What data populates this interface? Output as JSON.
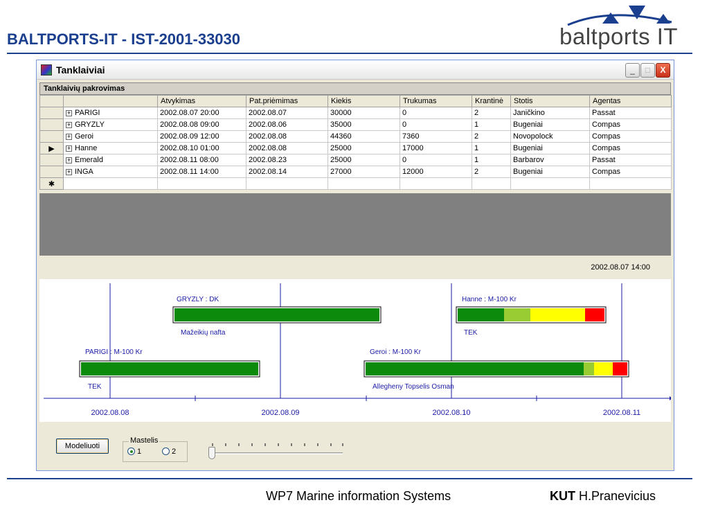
{
  "slide": {
    "title": "BALTPORTS-IT - IST-2001-33030",
    "logo_text": "baltports IT",
    "footer_center": "WP7 Marine information Systems",
    "footer_org": "KUT",
    "footer_author": "H.Pranevicius"
  },
  "window": {
    "title": "Tanklaiviai",
    "min_label": "_",
    "max_label": "□",
    "close_label": "X"
  },
  "grid": {
    "caption": "Tanklaivių pakrovimas",
    "columns": [
      "",
      "Atvykimas",
      "Pat.priėmimas",
      "Kiekis",
      "Trukumas",
      "Krantinė",
      "Stotis",
      "Agentas"
    ],
    "rows": [
      [
        "PARIGI",
        "2002.08.07 20:00",
        "2002.08.07",
        "30000",
        "0",
        "2",
        "Janičkino",
        "Passat"
      ],
      [
        "GRYZLY",
        "2002.08.08 09:00",
        "2002.08.06",
        "35000",
        "0",
        "1",
        "Bugeniai",
        "Compas"
      ],
      [
        "Geroi",
        "2002.08.09 12:00",
        "2002.08.08",
        "44360",
        "7360",
        "2",
        "Novopolock",
        "Compas"
      ],
      [
        "Hanne",
        "2002.08.10 01:00",
        "2002.08.08",
        "25000",
        "17000",
        "1",
        "Bugeniai",
        "Compas"
      ],
      [
        "Emerald",
        "2002.08.11 08:00",
        "2002.08.23",
        "25000",
        "0",
        "1",
        "Barbarov",
        "Passat"
      ],
      [
        "INGA",
        "2002.08.11 14:00",
        "2002.08.14",
        "27000",
        "12000",
        "2",
        "Bugeniai",
        "Compas"
      ]
    ],
    "current_row_marker": "▶",
    "new_row_marker": "✱",
    "expand_symbol": "+"
  },
  "timeline": {
    "current_time": "2002.08.07  14:00",
    "axis_labels": [
      "2002.08.08",
      "2002.08.09",
      "2002.08.10",
      "2002.08.11"
    ],
    "bars": [
      {
        "top_label": "GRYZLY : DK",
        "bottom_label": "Mažeikių nafta"
      },
      {
        "top_label": "Hanne : M-100 Kr",
        "bottom_label": "TEK"
      },
      {
        "top_label": "PARIGI : M-100 Kr",
        "bottom_label": "TEK"
      },
      {
        "top_label": "Geroi : M-100 Kr",
        "bottom_label": "Allegheny Topselis Osman"
      }
    ],
    "colors": {
      "green": "#0c8a0c",
      "lightgreen": "#99cc33",
      "yellow": "#ffff00",
      "red": "#ff0000",
      "line": "#1a1aa8"
    }
  },
  "controls": {
    "model_button": "Modeliuoti",
    "scale_legend": "Mastelis",
    "scale_options": [
      "1",
      "2"
    ],
    "scale_selected": "1"
  }
}
